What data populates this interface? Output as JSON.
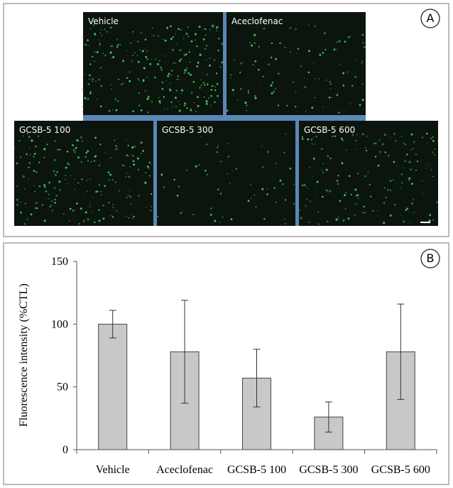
{
  "panel_a": {
    "label": "A",
    "images": [
      "Vehicle",
      "Aceclofenac",
      "GCSB-5 100",
      "GCSB-5 300",
      "GCSB-5 600"
    ]
  },
  "chart_data": {
    "type": "bar",
    "panel_label": "B",
    "y_label": "Fluorescence intensity (%CTL)",
    "categories": [
      "Vehicle",
      "Aceclofenac",
      "GCSB-5 100",
      "GCSB-5 300",
      "GCSB-5 600"
    ],
    "values": [
      100,
      78,
      57,
      26,
      78
    ],
    "errors": [
      11,
      41,
      23,
      12,
      38
    ],
    "color": "#c8c8c8",
    "ylim": [
      0,
      150
    ],
    "yticks": [
      0,
      50,
      100,
      150
    ],
    "grid": false
  }
}
